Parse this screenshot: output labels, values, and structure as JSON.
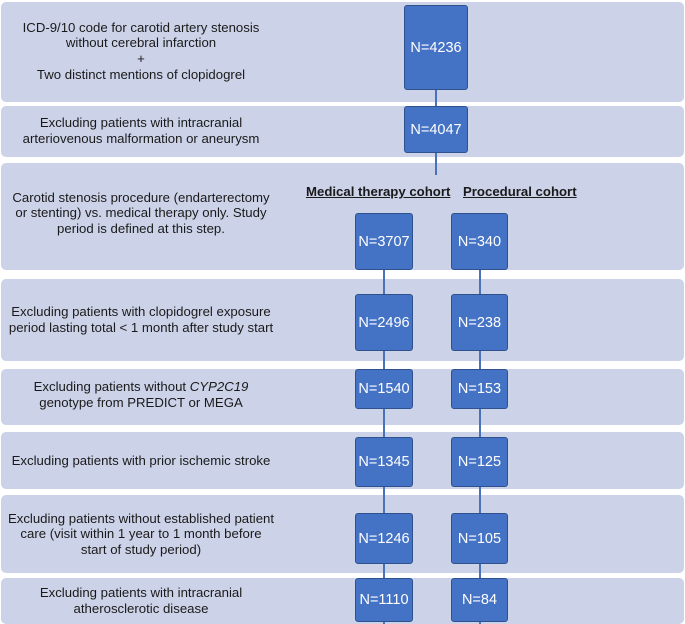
{
  "steps": [
    {
      "pre": "ICD-9/10 code for carotid artery stenosis without cerebral infarction\n+\nTwo distinct mentions of clopidogrel",
      "it": "",
      "post": "",
      "main": "N=4236",
      "medical": "",
      "procedural": ""
    },
    {
      "pre": "Excluding patients with intracranial arteriovenous malformation or aneurysm",
      "it": "",
      "post": "",
      "main": "N=4047",
      "medical": "",
      "procedural": ""
    },
    {
      "pre": "Carotid stenosis procedure (endarterectomy or stenting) vs. medical therapy only. Study period is defined at this step.",
      "it": "",
      "post": "",
      "main": "",
      "medical": "N=3707",
      "procedural": "N=340"
    },
    {
      "pre": "Excluding patients with clopidogrel exposure period lasting total < 1 month after study start",
      "it": "",
      "post": "",
      "main": "",
      "medical": "N=2496",
      "procedural": "N=238"
    },
    {
      "pre": "Excluding patients without ",
      "it": "CYP2C19",
      "post": " genotype from PREDICT or MEGA",
      "main": "",
      "medical": "N=1540",
      "procedural": "N=153"
    },
    {
      "pre": "Excluding patients with prior ischemic stroke",
      "it": "",
      "post": "",
      "main": "",
      "medical": "N=1345",
      "procedural": "N=125"
    },
    {
      "pre": "Excluding patients without established patient care (visit within 1 year to 1 month before start of study period)",
      "it": "",
      "post": "",
      "main": "",
      "medical": "N=1246",
      "procedural": "N=105"
    },
    {
      "pre": "Excluding patients with intracranial atherosclerotic disease",
      "it": "",
      "post": "",
      "main": "",
      "medical": "N=1110",
      "procedural": "N=84"
    }
  ],
  "cohorts": {
    "medical": "Medical therapy cohort",
    "procedural": "Procedural cohort"
  },
  "colors": {
    "band": "#ccd2e8",
    "box": "#4472c4",
    "box_border": "#2f528f",
    "line": "#4a72b8"
  }
}
